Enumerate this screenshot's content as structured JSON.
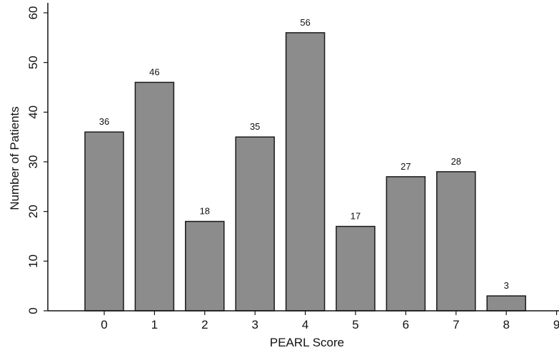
{
  "chart_data": {
    "type": "bar",
    "title": "",
    "xlabel": "PEARL Score",
    "ylabel": "Number of Patients",
    "categories": [
      "0",
      "1",
      "2",
      "3",
      "4",
      "5",
      "6",
      "7",
      "8"
    ],
    "values": [
      36,
      46,
      18,
      35,
      56,
      17,
      27,
      28,
      3
    ],
    "data_labels": [
      "36",
      "46",
      "18",
      "35",
      "56",
      "17",
      "27",
      "28",
      "3"
    ],
    "x_ticks": [
      "0",
      "1",
      "2",
      "3",
      "4",
      "5",
      "6",
      "7",
      "8",
      "9"
    ],
    "y_ticks": [
      "0",
      "10",
      "20",
      "30",
      "40",
      "50",
      "60"
    ],
    "ylim": [
      0,
      60
    ],
    "xlim": [
      -1,
      9
    ],
    "grid": false,
    "legend": "none",
    "bar_color": "#8c8c8c",
    "edge_color": "#1a1a1a"
  }
}
